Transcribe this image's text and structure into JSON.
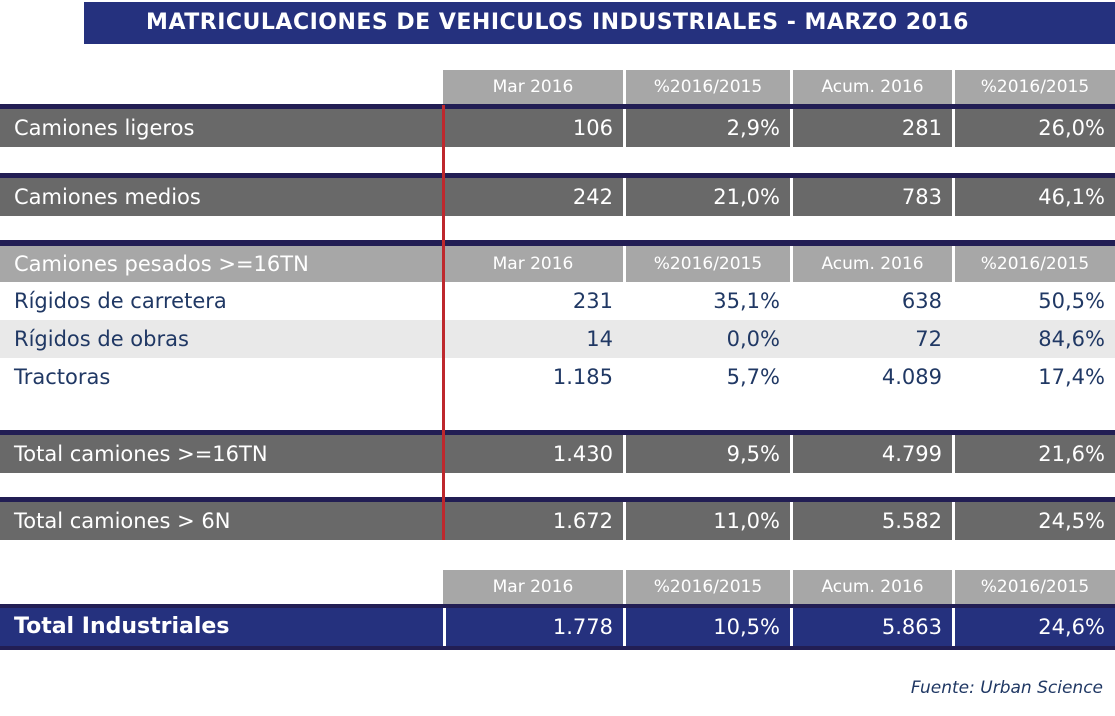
{
  "title": "MATRICULACIONES DE VEHICULOS INDUSTRIALES - MARZO 2016",
  "header": {
    "columns": [
      "Mar 2016",
      "%2016/2015",
      "Acum. 2016",
      "%2016/2015"
    ]
  },
  "rows": [
    {
      "label": "Camiones ligeros",
      "values": [
        "106",
        "2,9%",
        "281",
        "26,0%"
      ]
    },
    {
      "label": "Camiones medios",
      "values": [
        "242",
        "21,0%",
        "783",
        "46,1%"
      ]
    },
    {
      "label": "Camiones pesados >=16TN"
    },
    {
      "label": "Rígidos de carretera",
      "values": [
        "231",
        "35,1%",
        "638",
        "50,5%"
      ]
    },
    {
      "label": "Rígidos de obras",
      "values": [
        "14",
        "0,0%",
        "72",
        "84,6%"
      ]
    },
    {
      "label": "Tractoras",
      "values": [
        "1.185",
        "5,7%",
        "4.089",
        "17,4%"
      ]
    },
    {
      "label": "Total camiones >=16TN",
      "values": [
        "1.430",
        "9,5%",
        "4.799",
        "21,6%"
      ]
    },
    {
      "label": "Total camiones > 6N",
      "values": [
        "1.672",
        "11,0%",
        "5.582",
        "24,5%"
      ]
    },
    {
      "label": "Total Industriales",
      "values": [
        "1.778",
        "10,5%",
        "5.863",
        "24,6%"
      ]
    }
  ],
  "footer": {
    "source": "Fuente: Urban Science"
  },
  "colors": {
    "title_navy": "#25317E",
    "border_navy": "#221E54",
    "band_gray": "#696969",
    "header_gray": "#A7A7A7",
    "zebra_gray": "#E9E9E9",
    "text_navy": "#203864",
    "red_divider": "#BE282D"
  }
}
